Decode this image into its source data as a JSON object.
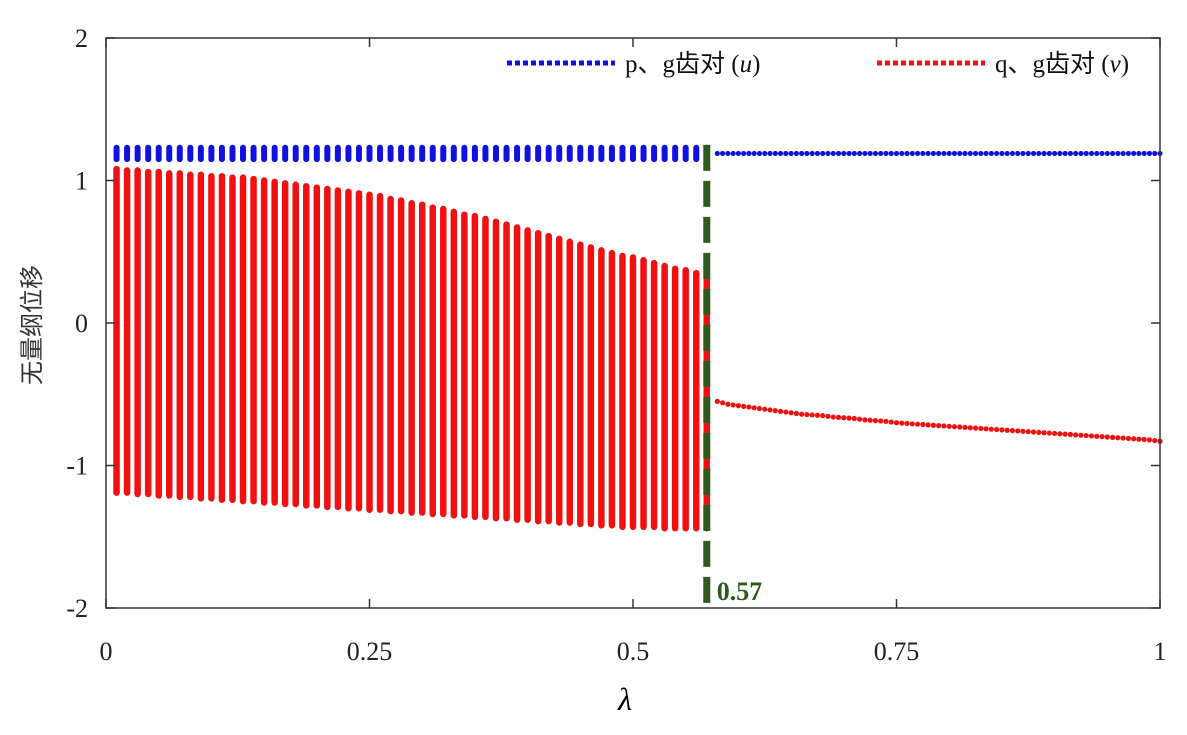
{
  "chart_data": {
    "type": "scatter",
    "title": "",
    "xlabel": "λ",
    "ylabel": "无量纲位移",
    "xlim": [
      0,
      1
    ],
    "ylim": [
      -2,
      2
    ],
    "xticks": [
      0,
      0.25,
      0.5,
      0.75,
      1
    ],
    "xtick_labels": [
      "0",
      "0.25",
      "0.5",
      "0.75",
      "1"
    ],
    "yticks": [
      2,
      1,
      0,
      -1,
      -2
    ],
    "ytick_labels": [
      "2",
      "1",
      "0",
      "-1",
      "-2"
    ],
    "legend_position": "top",
    "bifurcation": {
      "lambda": 0.57,
      "label": "0.57",
      "color": "#2e5a1e"
    },
    "series": [
      {
        "name": "p、g齿对 (u)",
        "label_prefix": "p、g齿对 (",
        "label_var": "u",
        "label_suffix": ")",
        "color": "#1010e0",
        "band_lambda_start": 0.01,
        "band_lambda_end": 0.57,
        "band_step": 0.01,
        "band_range": [
          1.15,
          1.23
        ],
        "post_lambda_start": 0.58,
        "post_lambda_end": 1.0,
        "post_step": 0.01,
        "post_value": 1.19
      },
      {
        "name": "q、g齿对 (v)",
        "label_prefix": "q、g齿对 (",
        "label_var": "v",
        "label_suffix": ")",
        "color": "#f01010",
        "band_lambda_start": 0.01,
        "band_step": 0.01,
        "band_upper": [
          1.08,
          1.07,
          1.07,
          1.06,
          1.06,
          1.05,
          1.05,
          1.04,
          1.04,
          1.03,
          1.03,
          1.02,
          1.02,
          1.01,
          1.0,
          0.99,
          0.98,
          0.97,
          0.96,
          0.95,
          0.94,
          0.93,
          0.92,
          0.91,
          0.9,
          0.89,
          0.87,
          0.86,
          0.84,
          0.83,
          0.81,
          0.8,
          0.78,
          0.76,
          0.75,
          0.73,
          0.71,
          0.69,
          0.67,
          0.65,
          0.63,
          0.61,
          0.59,
          0.57,
          0.55,
          0.53,
          0.51,
          0.49,
          0.47,
          0.46,
          0.44,
          0.42,
          0.4,
          0.38,
          0.37,
          0.35,
          0.33
        ],
        "band_lower": [
          -1.19,
          -1.19,
          -1.2,
          -1.2,
          -1.21,
          -1.21,
          -1.22,
          -1.22,
          -1.23,
          -1.23,
          -1.24,
          -1.24,
          -1.25,
          -1.25,
          -1.26,
          -1.26,
          -1.27,
          -1.27,
          -1.28,
          -1.28,
          -1.29,
          -1.29,
          -1.3,
          -1.3,
          -1.31,
          -1.31,
          -1.32,
          -1.32,
          -1.33,
          -1.33,
          -1.34,
          -1.34,
          -1.35,
          -1.35,
          -1.36,
          -1.36,
          -1.37,
          -1.37,
          -1.38,
          -1.38,
          -1.39,
          -1.39,
          -1.4,
          -1.4,
          -1.41,
          -1.41,
          -1.42,
          -1.42,
          -1.43,
          -1.43,
          -1.43,
          -1.43,
          -1.44,
          -1.44,
          -1.44,
          -1.44,
          -1.44
        ],
        "post_lambda_start": 0.58,
        "post_step": 0.01,
        "post_values": [
          -0.55,
          -0.57,
          -0.58,
          -0.59,
          -0.6,
          -0.61,
          -0.62,
          -0.63,
          -0.64,
          -0.645,
          -0.65,
          -0.66,
          -0.665,
          -0.67,
          -0.68,
          -0.685,
          -0.69,
          -0.7,
          -0.705,
          -0.71,
          -0.715,
          -0.72,
          -0.725,
          -0.73,
          -0.735,
          -0.74,
          -0.745,
          -0.75,
          -0.755,
          -0.76,
          -0.765,
          -0.77,
          -0.775,
          -0.78,
          -0.785,
          -0.79,
          -0.795,
          -0.8,
          -0.805,
          -0.81,
          -0.815,
          -0.82,
          -0.83
        ]
      }
    ]
  }
}
